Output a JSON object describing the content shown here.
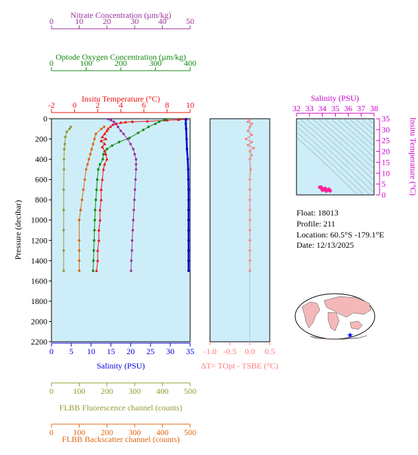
{
  "colors": {
    "nitrate": "#993399",
    "oxygen": "#118811",
    "temperature": "#ee1111",
    "salinity": "#0000dd",
    "fluorescence": "#999933",
    "backscatter": "#dd6611",
    "delta": "#ff7777",
    "ts_axis": "#cc00cc",
    "plot_bg": "#cdeef8"
  },
  "info": {
    "float": "Float:  18013",
    "profile": "Profile:  211",
    "location": "Location:  60.5°S  -179.1°E",
    "date": "Date:  12/13/2025"
  },
  "chart_data": [
    {
      "type": "line",
      "name": "main-profile",
      "ylabel": "Pressure (decibar)",
      "ylim": [
        0,
        2200
      ],
      "yticks": [
        0,
        200,
        400,
        600,
        800,
        1000,
        1200,
        1400,
        1600,
        1800,
        2000,
        2200
      ],
      "grid": false,
      "axes": [
        {
          "key": "nitrate",
          "label": "Nitrate Concentration (µm/kg)",
          "range": [
            0,
            50
          ],
          "ticks": [
            0,
            10,
            20,
            30,
            40,
            50
          ],
          "position": "top"
        },
        {
          "key": "oxygen",
          "label": "Optode Oxygen Concentration (µm/kg)",
          "range": [
            0,
            400
          ],
          "ticks": [
            0,
            100,
            200,
            300,
            400
          ],
          "position": "top"
        },
        {
          "key": "temperature",
          "label": "Insitu Temperature (°C)",
          "range": [
            -2,
            10
          ],
          "ticks": [
            -2,
            0,
            2,
            4,
            6,
            8,
            10
          ],
          "position": "top"
        },
        {
          "key": "salinity",
          "label": "Salinity (PSU)",
          "range": [
            0,
            35
          ],
          "ticks": [
            0,
            5,
            10,
            15,
            20,
            25,
            30,
            35
          ],
          "position": "bottom"
        },
        {
          "key": "fluorescence",
          "label": "FLBB Fluorescence channel (counts)",
          "range": [
            0,
            500
          ],
          "ticks": [
            0,
            100,
            200,
            300,
            400,
            500
          ],
          "position": "bottom"
        },
        {
          "key": "backscatter",
          "label": "FLBB Backscatter channel (counts)",
          "range": [
            0,
            500
          ],
          "ticks": [
            0,
            100,
            200,
            300,
            400,
            500
          ],
          "position": "bottom"
        }
      ],
      "series": [
        {
          "key": "temperature",
          "values": [
            [
              9.7,
              5
            ],
            [
              9.0,
              10
            ],
            [
              8.0,
              15
            ],
            [
              6.3,
              25
            ],
            [
              5.0,
              30
            ],
            [
              4.4,
              35
            ],
            [
              4.0,
              40
            ],
            [
              3.6,
              50
            ],
            [
              3.3,
              60
            ],
            [
              3.1,
              80
            ],
            [
              2.9,
              100
            ],
            [
              2.8,
              120
            ],
            [
              2.6,
              150
            ],
            [
              2.4,
              180
            ],
            [
              2.7,
              200
            ],
            [
              2.3,
              220
            ],
            [
              2.6,
              250
            ],
            [
              2.4,
              280
            ],
            [
              2.6,
              320
            ],
            [
              2.7,
              350
            ],
            [
              2.8,
              400
            ],
            [
              2.6,
              450
            ],
            [
              2.5,
              500
            ],
            [
              2.4,
              600
            ],
            [
              2.3,
              700
            ],
            [
              2.3,
              800
            ],
            [
              2.2,
              900
            ],
            [
              2.2,
              1000
            ],
            [
              2.1,
              1100
            ],
            [
              2.1,
              1200
            ],
            [
              2.0,
              1300
            ],
            [
              2.0,
              1400
            ],
            [
              1.9,
              1500
            ]
          ]
        },
        {
          "key": "oxygen",
          "values": [
            [
              330,
              5
            ],
            [
              325,
              15
            ],
            [
              310,
              30
            ],
            [
              300,
              50
            ],
            [
              280,
              80
            ],
            [
              265,
              110
            ],
            [
              250,
              140
            ],
            [
              225,
              190
            ],
            [
              195,
              230
            ],
            [
              175,
              265
            ],
            [
              160,
              300
            ],
            [
              150,
              350
            ],
            [
              148,
              400
            ],
            [
              140,
              450
            ],
            [
              135,
              500
            ],
            [
              132,
              600
            ],
            [
              130,
              700
            ],
            [
              128,
              800
            ],
            [
              126,
              900
            ],
            [
              125,
              1000
            ],
            [
              124,
              1100
            ],
            [
              123,
              1200
            ],
            [
              122,
              1300
            ],
            [
              121,
              1400
            ],
            [
              120,
              1500
            ]
          ]
        },
        {
          "key": "nitrate",
          "values": [
            [
              20.5,
              5
            ],
            [
              21.5,
              15
            ],
            [
              22.5,
              30
            ],
            [
              23,
              50
            ],
            [
              24,
              80
            ],
            [
              25,
              120
            ],
            [
              26,
              150
            ],
            [
              27.5,
              200
            ],
            [
              28.5,
              250
            ],
            [
              29.5,
              300
            ],
            [
              30,
              350
            ],
            [
              30.5,
              400
            ],
            [
              30.5,
              450
            ],
            [
              30.5,
              500
            ],
            [
              30.3,
              600
            ],
            [
              30.1,
              700
            ],
            [
              29.9,
              800
            ],
            [
              29.7,
              900
            ],
            [
              29.5,
              1000
            ],
            [
              29.3,
              1100
            ],
            [
              29.1,
              1200
            ],
            [
              29,
              1300
            ],
            [
              28.8,
              1400
            ],
            [
              28.7,
              1500
            ]
          ]
        },
        {
          "key": "salinity",
          "values": [
            [
              33.9,
              5
            ],
            [
              33.9,
              50
            ],
            [
              34.0,
              100
            ],
            [
              34.1,
              200
            ],
            [
              34.2,
              300
            ],
            [
              34.4,
              400
            ],
            [
              34.5,
              500
            ],
            [
              34.55,
              600
            ],
            [
              34.6,
              700
            ],
            [
              34.6,
              800
            ],
            [
              34.6,
              900
            ],
            [
              34.6,
              1000
            ],
            [
              34.6,
              1100
            ],
            [
              34.6,
              1200
            ],
            [
              34.6,
              1300
            ],
            [
              34.6,
              1400
            ],
            [
              34.6,
              1500
            ]
          ]
        },
        {
          "key": "fluorescence",
          "values": [
            [
              70,
              80
            ],
            [
              65,
              100
            ],
            [
              55,
              130
            ],
            [
              50,
              180
            ],
            [
              48,
              250
            ],
            [
              46,
              300
            ],
            [
              45,
              400
            ],
            [
              45,
              500
            ],
            [
              44,
              700
            ],
            [
              44,
              900
            ],
            [
              44,
              1100
            ],
            [
              44,
              1300
            ],
            [
              44,
              1500
            ]
          ]
        },
        {
          "key": "backscatter",
          "values": [
            [
              190,
              80
            ],
            [
              180,
              100
            ],
            [
              160,
              150
            ],
            [
              155,
              200
            ],
            [
              150,
              250
            ],
            [
              145,
              300
            ],
            [
              140,
              350
            ],
            [
              135,
              400
            ],
            [
              130,
              450
            ],
            [
              125,
              500
            ],
            [
              120,
              600
            ],
            [
              115,
              700
            ],
            [
              110,
              800
            ],
            [
              105,
              900
            ],
            [
              100,
              1000
            ],
            [
              100,
              1200
            ],
            [
              100,
              1300
            ],
            [
              100,
              1400
            ],
            [
              100,
              1500
            ]
          ]
        }
      ]
    },
    {
      "type": "line",
      "name": "delta-t",
      "xlabel": "ΔT= TOpt - TSBE (°C)",
      "xlim": [
        -1.0,
        0.5
      ],
      "xticks": [
        "-1.0",
        "-0.5",
        "0.0",
        "0.5"
      ],
      "ylim": [
        0,
        2200
      ],
      "series": [
        {
          "key": "delta",
          "values": [
            [
              0.0,
              10
            ],
            [
              -0.05,
              30
            ],
            [
              0.05,
              50
            ],
            [
              0.0,
              80
            ],
            [
              -0.05,
              120
            ],
            [
              0.05,
              160
            ],
            [
              -0.1,
              200
            ],
            [
              0.05,
              230
            ],
            [
              -0.05,
              260
            ],
            [
              0.1,
              290
            ],
            [
              0.0,
              320
            ],
            [
              0.05,
              360
            ],
            [
              0.0,
              400
            ],
            [
              0.02,
              500
            ],
            [
              0.0,
              600
            ],
            [
              0.0,
              700
            ],
            [
              0.0,
              800
            ],
            [
              0.0,
              900
            ],
            [
              0.0,
              1000
            ],
            [
              0.0,
              1100
            ],
            [
              0.0,
              1200
            ],
            [
              0.0,
              1300
            ],
            [
              0.0,
              1400
            ],
            [
              0.0,
              1500
            ]
          ]
        }
      ]
    },
    {
      "type": "scatter",
      "name": "ts-diagram",
      "xlabel": "Salinity (PSU)",
      "xlim": [
        32,
        38
      ],
      "xticks": [
        32,
        33,
        34,
        35,
        36,
        37,
        38
      ],
      "ylabel": "Insitu Temperature (°C)",
      "ylim": [
        0,
        35
      ],
      "yticks": [
        0,
        5,
        10,
        15,
        20,
        25,
        30,
        35
      ],
      "series": [
        {
          "key": "ts",
          "values": [
            [
              33.9,
              3.6
            ],
            [
              33.95,
              3.0
            ],
            [
              34.0,
              2.7
            ],
            [
              34.1,
              2.5
            ],
            [
              34.2,
              2.4
            ],
            [
              34.4,
              2.3
            ],
            [
              34.5,
              2.2
            ],
            [
              34.6,
              2.0
            ],
            [
              34.6,
              1.9
            ],
            [
              34.3,
              1.8
            ],
            [
              34.0,
              2.2
            ],
            [
              33.8,
              3.5
            ],
            [
              34.5,
              2.6
            ],
            [
              34.2,
              3.0
            ]
          ]
        }
      ]
    }
  ]
}
